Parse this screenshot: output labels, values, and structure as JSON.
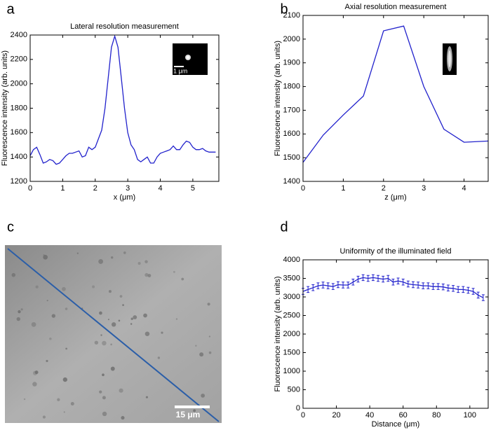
{
  "chart_data": [
    {
      "type": "line",
      "panel": "a",
      "title": "Lateral resolution measurement",
      "xlabel": "x (μm)",
      "ylabel": "Fluorescence intensity (arb. units)",
      "inset_label": "1 μm",
      "color": "#2222cc",
      "x": [
        0,
        0.1,
        0.2,
        0.3,
        0.4,
        0.5,
        0.6,
        0.7,
        0.8,
        0.9,
        1.0,
        1.1,
        1.2,
        1.3,
        1.4,
        1.5,
        1.6,
        1.7,
        1.8,
        1.9,
        2.0,
        2.1,
        2.2,
        2.3,
        2.4,
        2.5,
        2.6,
        2.7,
        2.8,
        2.9,
        3.0,
        3.1,
        3.2,
        3.3,
        3.4,
        3.5,
        3.6,
        3.7,
        3.8,
        3.9,
        4.0,
        4.1,
        4.2,
        4.3,
        4.4,
        4.5,
        4.6,
        4.7,
        4.8,
        4.9,
        5.0,
        5.1,
        5.2,
        5.3,
        5.4,
        5.5,
        5.6,
        5.7
      ],
      "values": [
        1410,
        1460,
        1480,
        1420,
        1350,
        1360,
        1380,
        1370,
        1340,
        1350,
        1380,
        1410,
        1430,
        1430,
        1440,
        1450,
        1400,
        1410,
        1480,
        1460,
        1480,
        1550,
        1620,
        1800,
        2050,
        2300,
        2390,
        2300,
        2050,
        1800,
        1600,
        1500,
        1460,
        1380,
        1360,
        1380,
        1400,
        1350,
        1350,
        1400,
        1430,
        1440,
        1450,
        1460,
        1490,
        1460,
        1460,
        1500,
        1530,
        1520,
        1480,
        1460,
        1460,
        1470,
        1450,
        1440,
        1440,
        1440
      ],
      "xlim": [
        0,
        5.8
      ],
      "ylim": [
        1200,
        2400
      ],
      "xticks": [
        0,
        1,
        2,
        3,
        4,
        5
      ],
      "yticks": [
        1200,
        1400,
        1600,
        1800,
        2000,
        2200,
        2400
      ]
    },
    {
      "type": "line",
      "panel": "b",
      "title": "Axial resolution measurement",
      "xlabel": "z (μm)",
      "ylabel": "Fluorescence intensity (arb. units)",
      "color": "#2222cc",
      "x": [
        0,
        0.5,
        1,
        1.5,
        2,
        2.5,
        3,
        3.5,
        4,
        4.6
      ],
      "values": [
        1480,
        1595,
        1680,
        1760,
        2035,
        2055,
        1800,
        1620,
        1565,
        1570
      ],
      "xlim": [
        0,
        4.6
      ],
      "ylim": [
        1400,
        2100
      ],
      "xticks": [
        0,
        1,
        2,
        3,
        4
      ],
      "yticks": [
        1400,
        1500,
        1600,
        1700,
        1800,
        1900,
        2000,
        2100
      ]
    },
    {
      "type": "image",
      "panel": "c",
      "scale_bar_label": "15 μm"
    },
    {
      "type": "errorbar",
      "panel": "d",
      "title": "Uniformity of the illuminated field",
      "xlabel": "Distance (μm)",
      "ylabel": "Fluorescence intensity (arb. units)",
      "color": "#2222cc",
      "x": [
        0,
        3,
        6,
        9,
        12,
        15,
        18,
        21,
        24,
        27,
        30,
        33,
        36,
        39,
        42,
        45,
        48,
        51,
        54,
        57,
        60,
        63,
        66,
        69,
        72,
        75,
        78,
        81,
        84,
        87,
        90,
        93,
        96,
        99,
        102,
        105,
        108
      ],
      "values": [
        3150,
        3200,
        3250,
        3300,
        3320,
        3300,
        3280,
        3330,
        3320,
        3320,
        3400,
        3480,
        3520,
        3500,
        3520,
        3500,
        3480,
        3500,
        3400,
        3430,
        3400,
        3350,
        3330,
        3320,
        3300,
        3300,
        3280,
        3280,
        3270,
        3240,
        3230,
        3200,
        3200,
        3180,
        3150,
        3050,
        2980
      ],
      "errors": [
        80,
        80,
        80,
        80,
        80,
        80,
        80,
        80,
        80,
        80,
        80,
        80,
        80,
        80,
        80,
        80,
        80,
        80,
        80,
        80,
        80,
        80,
        80,
        80,
        80,
        80,
        80,
        80,
        80,
        80,
        80,
        80,
        80,
        80,
        80,
        80,
        80
      ],
      "xlim": [
        0,
        111
      ],
      "ylim": [
        0,
        4000
      ],
      "xticks": [
        0,
        20,
        40,
        60,
        80,
        100
      ],
      "yticks": [
        0,
        500,
        1000,
        1500,
        2000,
        2500,
        3000,
        3500,
        4000
      ]
    }
  ]
}
